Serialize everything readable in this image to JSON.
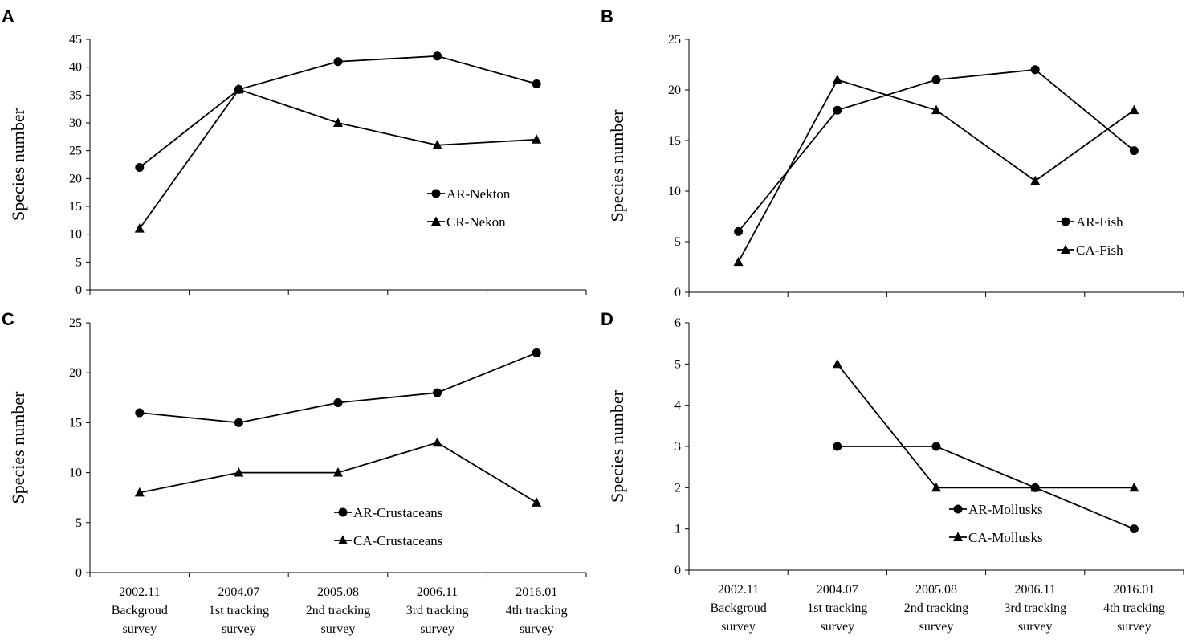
{
  "categories": [
    [
      "2002.11",
      "Backgroud",
      "survey"
    ],
    [
      "2004.07",
      "1st tracking",
      "survey"
    ],
    [
      "2005.08",
      "2nd tracking",
      "survey"
    ],
    [
      "2006.11",
      "3rd tracking",
      "survey"
    ],
    [
      "2016.01",
      "4th tracking",
      "survey"
    ]
  ],
  "chart_data": [
    {
      "panel": "A",
      "type": "line",
      "ylabel": "Species number",
      "ylim": [
        0,
        45
      ],
      "ytick_step": 5,
      "x_labels_shown": false,
      "legend_position": "center-right",
      "series": [
        {
          "name": "AR-Nekton",
          "marker": "circle",
          "values": [
            22,
            36,
            41,
            42,
            37
          ]
        },
        {
          "name": "CR-Nekon",
          "marker": "triangle",
          "values": [
            11,
            36,
            30,
            26,
            27
          ]
        }
      ]
    },
    {
      "panel": "B",
      "type": "line",
      "ylabel": "Species number",
      "ylim": [
        0,
        25
      ],
      "ytick_step": 5,
      "x_labels_shown": false,
      "legend_position": "bottom-right",
      "series": [
        {
          "name": "AR-Fish",
          "marker": "circle",
          "values": [
            6,
            18,
            21,
            22,
            14
          ]
        },
        {
          "name": "CA-Fish",
          "marker": "triangle",
          "values": [
            3,
            21,
            18,
            11,
            18
          ]
        }
      ]
    },
    {
      "panel": "C",
      "type": "line",
      "ylabel": "Species number",
      "ylim": [
        0,
        25
      ],
      "ytick_step": 5,
      "x_labels_shown": true,
      "legend_position": "bottom-right",
      "series": [
        {
          "name": "AR-Crustaceans",
          "marker": "circle",
          "values": [
            16,
            15,
            17,
            18,
            22
          ]
        },
        {
          "name": "CA-Crustaceans",
          "marker": "triangle",
          "values": [
            8,
            10,
            10,
            13,
            7
          ]
        }
      ]
    },
    {
      "panel": "D",
      "type": "line",
      "ylabel": "Species number",
      "ylim": [
        0,
        6
      ],
      "ytick_step": 1,
      "x_labels_shown": true,
      "legend_position": "bottom-right",
      "series": [
        {
          "name": "AR-Mollusks",
          "marker": "circle",
          "values": [
            null,
            3,
            3,
            2,
            1
          ]
        },
        {
          "name": "CA-Mollusks",
          "marker": "triangle",
          "values": [
            null,
            5,
            2,
            2,
            2
          ]
        }
      ]
    }
  ]
}
